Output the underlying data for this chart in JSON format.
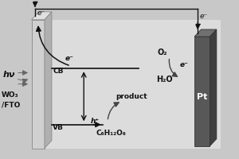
{
  "bg_color": "#c8c8c8",
  "panel_color": "#dcdcdc",
  "wfo_face_color": "#d0d0d0",
  "wfo_side_color": "#b0b0b0",
  "wfo_top_color": "#e0e0e0",
  "pt_face_color": "#585858",
  "pt_side_color": "#404040",
  "pt_top_color": "#707070",
  "wire_color": "#111111",
  "text_color": "#111111",
  "label_WO3": "WO₃\n/FTO",
  "label_Pt": "Pt",
  "label_CB": "CB",
  "label_VB": "VB",
  "label_hv": "hν",
  "label_e_left": "e⁻",
  "label_e_right": "e⁻",
  "label_e_mid": "e⁻",
  "label_e_o2": "e⁻",
  "label_O2": "O₂",
  "label_H2O": "H₂O",
  "label_hp": "h⁺",
  "label_product": "product",
  "label_glucose": "C₆H₁₂O₆",
  "figsize": [
    3.0,
    2.0
  ],
  "dpi": 100
}
